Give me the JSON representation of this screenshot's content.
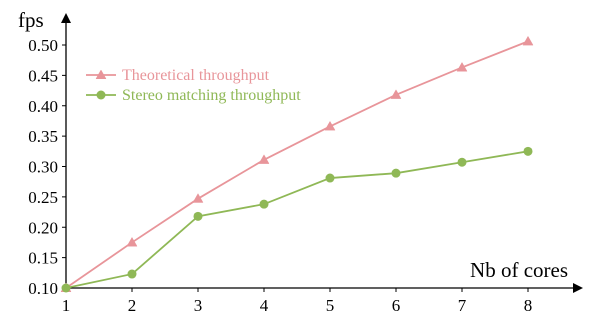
{
  "chart_data": {
    "type": "line",
    "title": "",
    "xlabel": "Nb of cores",
    "ylabel": "fps",
    "x": [
      1,
      2,
      3,
      4,
      5,
      6,
      7,
      8
    ],
    "xlim": [
      1,
      8
    ],
    "ylim": [
      0.1,
      0.5
    ],
    "xticks": [
      "1",
      "2",
      "3",
      "4",
      "5",
      "6",
      "7",
      "8"
    ],
    "yticks": [
      "0.10",
      "0.15",
      "0.20",
      "0.25",
      "0.30",
      "0.35",
      "0.40",
      "0.45",
      "0.50"
    ],
    "grid": false,
    "legend_position": "top-left",
    "series": [
      {
        "name": "Theoretical throughput",
        "values": [
          0.1,
          0.175,
          0.247,
          0.311,
          0.366,
          0.418,
          0.463,
          0.506
        ],
        "color": "#e8959a",
        "marker": "triangle"
      },
      {
        "name": "Stereo matching throughput",
        "values": [
          0.1,
          0.123,
          0.218,
          0.238,
          0.281,
          0.289,
          0.307,
          0.325
        ],
        "color": "#8fb856",
        "marker": "circle"
      }
    ]
  }
}
